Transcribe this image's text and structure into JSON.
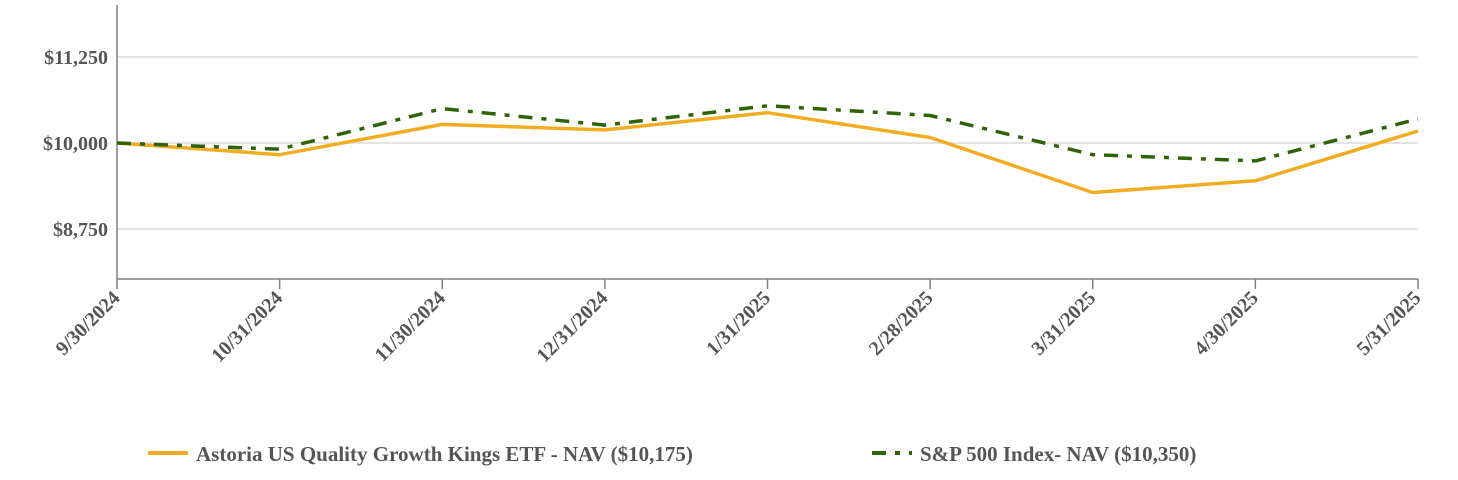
{
  "chart_data": {
    "type": "line",
    "title": "",
    "xlabel": "",
    "ylabel": "",
    "categories": [
      "9/30/2024",
      "10/31/2024",
      "11/30/2024",
      "12/31/2024",
      "1/31/2025",
      "2/28/2025",
      "3/31/2025",
      "4/30/2025",
      "5/31/2025"
    ],
    "ylim": [
      8000,
      12000
    ],
    "yticks": [
      8750,
      10000,
      11250
    ],
    "ytick_labels": [
      "$8,750",
      "$10,000",
      "$11,250"
    ],
    "grid": true,
    "legend_position": "bottom",
    "series": [
      {
        "name": "Astoria US Quality Growth Kings ETF - NAV ($10,175)",
        "color": "#F0AD22",
        "style": "solid",
        "values": [
          10000,
          9830,
          10270,
          10190,
          10440,
          10080,
          9280,
          9450,
          10175
        ]
      },
      {
        "name": "S&P 500 Index- NAV ($10,350)",
        "color": "#2E6308",
        "style": "dash-dot",
        "values": [
          10000,
          9910,
          10500,
          10260,
          10540,
          10400,
          9830,
          9740,
          10350
        ]
      }
    ]
  }
}
